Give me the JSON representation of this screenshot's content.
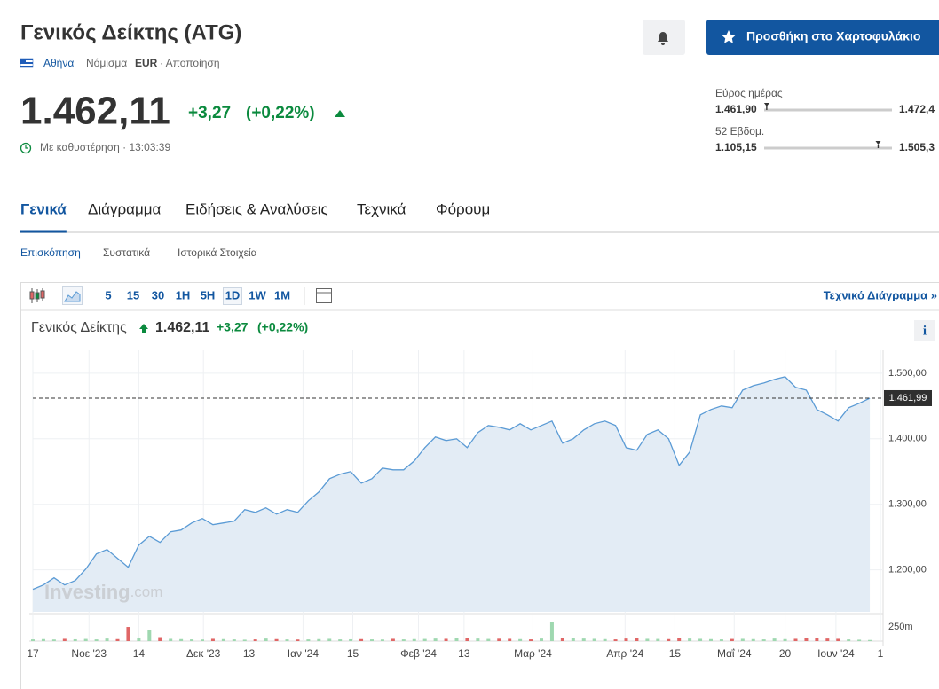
{
  "header": {
    "title": "Γενικός Δείκτης (ATG)",
    "exchange": "Αθήνα",
    "currency_label": "Νόμισμα",
    "currency": "EUR",
    "disclaimer": "· Αποποίηση",
    "add_button": "Προσθήκη στο Χαρτοφυλάκιο"
  },
  "quote": {
    "price": {
      "value": 1462.11,
      "label": "1.462,11"
    },
    "change": "+3,27",
    "change_pct": "(+0,22%)",
    "delay": "Με καθυστέρηση · 13:03:39"
  },
  "ranges": [
    {
      "label": "Εύρος ημέρας",
      "low": {
        "value": 1461.9,
        "label": "1.461,90"
      },
      "high": {
        "value": 1472.4,
        "label": "1.472,4"
      }
    },
    {
      "label": "52 Εβδομ.",
      "low": {
        "value": 1105.15,
        "label": "1.105,15"
      },
      "high": {
        "value": 1505.3,
        "label": "1.505,3"
      }
    }
  ],
  "tabs": [
    "Γενικά",
    "Διάγραμμα",
    "Ειδήσεις & Αναλύσεις",
    "Τεχνικά",
    "Φόρουμ"
  ],
  "subtabs": [
    "Επισκόπηση",
    "Συστατικά",
    "Ιστορικά Στοιχεία"
  ],
  "toolbar": {
    "intervals": [
      "5",
      "15",
      "30",
      "1H",
      "5H",
      "1D",
      "1W",
      "1M"
    ],
    "active": "1D",
    "technical_link": "Τεχνικό Διάγραμμα »",
    "info": "i"
  },
  "chart_data": {
    "type": "area",
    "title": "Γενικός Δείκτης",
    "color": "#5b9bd5",
    "fill": "#e3ecf5",
    "values": [
      1170.3,
      1177,
      1187.8,
      1177,
      1183.8,
      1201.3,
      1224.3,
      1231.1,
      1217.6,
      1204,
      1237.8,
      1251.3,
      1241.9,
      1258.1,
      1260.8,
      1271.6,
      1278.4,
      1268.9,
      1271.6,
      1274.3,
      1291.9,
      1287.8,
      1294.6,
      1285.1,
      1291.9,
      1287.8,
      1305.4,
      1318.9,
      1339.2,
      1345.9,
      1350,
      1332.4,
      1339.2,
      1355.4,
      1352.7,
      1352.7,
      1366.2,
      1386.5,
      1402.7,
      1397.3,
      1400,
      1386.5,
      1409.5,
      1420.3,
      1417.6,
      1413.5,
      1423,
      1413.5,
      1420.3,
      1427,
      1393.2,
      1400,
      1413.5,
      1423,
      1427,
      1420.3,
      1386.5,
      1382.4,
      1406.8,
      1413.5,
      1400,
      1359.5,
      1379.7,
      1436.5,
      1444.6,
      1450,
      1447.3,
      1474.3,
      1481.1,
      1485.1,
      1490.5,
      1494.6,
      1478.4,
      1474.3,
      1444.6,
      1436.5,
      1427,
      1447.3,
      1454.1,
      1461.99
    ],
    "last": {
      "value": 1461.99,
      "label": "1.461,99"
    },
    "xlim": [
      0,
      80
    ],
    "xticks": [
      {
        "value": 0,
        "label": "17"
      },
      {
        "value": 5.3,
        "label": "Νοε '23"
      },
      {
        "value": 10,
        "label": "14"
      },
      {
        "value": 16.1,
        "label": "Δεκ '23"
      },
      {
        "value": 20.4,
        "label": "13"
      },
      {
        "value": 25.5,
        "label": "Ιαν '24"
      },
      {
        "value": 30.2,
        "label": "15"
      },
      {
        "value": 36.4,
        "label": "Φεβ '24"
      },
      {
        "value": 40.7,
        "label": "13"
      },
      {
        "value": 47.2,
        "label": "Μαρ '24"
      },
      {
        "value": 55.9,
        "label": "Απρ '24"
      },
      {
        "value": 60.6,
        "label": "15"
      },
      {
        "value": 66.2,
        "label": "Μαΐ '24"
      },
      {
        "value": 71,
        "label": "20"
      },
      {
        "value": 75.8,
        "label": "Ιουν '24"
      },
      {
        "value": 80,
        "label": "1"
      }
    ],
    "ylim": [
      1136,
      1535
    ],
    "yticks": [
      {
        "value": 1200,
        "label": "1.200,00"
      },
      {
        "value": 1300,
        "label": "1.300,00"
      },
      {
        "value": 1400,
        "label": "1.400,00"
      },
      {
        "value": 1500,
        "label": "1.500,00"
      }
    ],
    "grid": true,
    "volume": {
      "axis": "y2",
      "up_color": "#9fd8b0",
      "down_color": "#e06666",
      "values": [
        30,
        35,
        28,
        40,
        32,
        38,
        30,
        45,
        35,
        250,
        60,
        200,
        70,
        40,
        35,
        30,
        28,
        40,
        35,
        30,
        25,
        30,
        45,
        35,
        30,
        28,
        30,
        35,
        40,
        30,
        32,
        35,
        30,
        28,
        40,
        30,
        35,
        38,
        45,
        40,
        50,
        55,
        45,
        38,
        42,
        40,
        35,
        30,
        45,
        330,
        60,
        50,
        45,
        40,
        35,
        30,
        45,
        55,
        40,
        38,
        35,
        50,
        45,
        40,
        35,
        30,
        38,
        40,
        35,
        30,
        45,
        35,
        40,
        55,
        50,
        45,
        40,
        30,
        25,
        20
      ]
    },
    "y2lim": [
      0,
      470
    ],
    "y2ticks": [
      {
        "value": 250,
        "label": "250m"
      }
    ],
    "watermark": {
      "brand": "Investing",
      "suffix": ".com"
    }
  }
}
